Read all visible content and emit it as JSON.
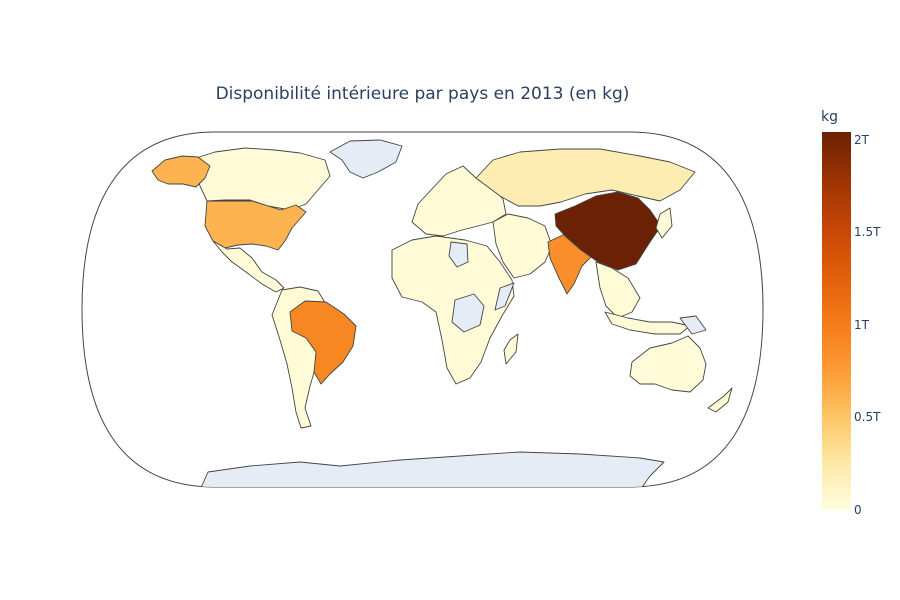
{
  "title": "Disponibilité intérieure par pays en 2013 (en kg)",
  "colorbar": {
    "title": "kg",
    "ticks": [
      "2T",
      "1.5T",
      "1T",
      "0.5T",
      "0"
    ],
    "tick_values": [
      2000000000000,
      1500000000000,
      1000000000000,
      500000000000,
      0
    ],
    "range": [
      0,
      2000000000000
    ],
    "colors": [
      "#fffde0",
      "#fde9a6",
      "#fdc463",
      "#fc9a34",
      "#f47a17",
      "#e05e0a",
      "#c44506",
      "#9c3304",
      "#6b2104"
    ]
  },
  "map": {
    "projection": "natural-earth",
    "land_color": "#fffbd6",
    "no_data_color": "#e5ecf6",
    "border_color": "#444444",
    "regions": [
      {
        "name": "China",
        "level": 1.0
      },
      {
        "name": "Brazil",
        "level": 0.45
      },
      {
        "name": "India",
        "level": 0.42
      },
      {
        "name": "United States",
        "level": 0.3
      },
      {
        "name": "Alaska (United States)",
        "level": 0.3
      },
      {
        "name": "Russia",
        "level": 0.1
      },
      {
        "name": "Canada",
        "level": 0.02
      },
      {
        "name": "Australia",
        "level": 0.02
      }
    ]
  }
}
